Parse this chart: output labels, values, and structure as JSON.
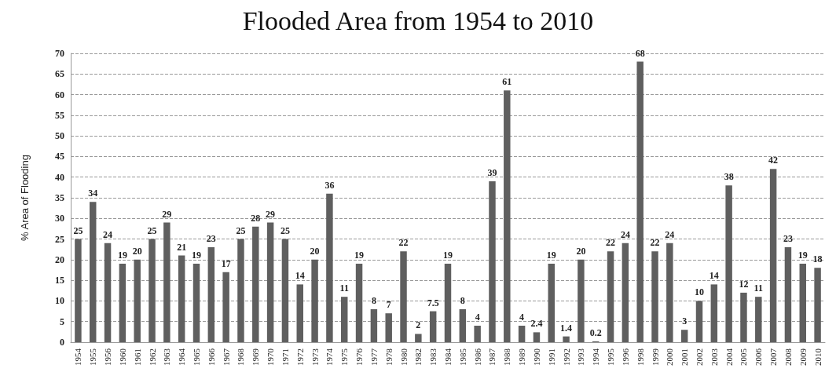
{
  "chart_data": {
    "type": "bar",
    "title": "Flooded Area from 1954 to 2010",
    "ylabel": "% Area of Flooding",
    "categories": [
      "1954",
      "1955",
      "1956",
      "1960",
      "1961",
      "1962",
      "1963",
      "1964",
      "1965",
      "1966",
      "1967",
      "1968",
      "1969",
      "1970",
      "1971",
      "1972",
      "1973",
      "1974",
      "1975",
      "1976",
      "1977",
      "1978",
      "1980",
      "1982",
      "1983",
      "1984",
      "1985",
      "1986",
      "1987",
      "1988",
      "1989",
      "1990",
      "1991",
      "1992",
      "1993",
      "1994",
      "1995",
      "1996",
      "1998",
      "1999",
      "2000",
      "2001",
      "2002",
      "2003",
      "2004",
      "2005",
      "2006",
      "2007",
      "2008",
      "2009",
      "2010"
    ],
    "values": [
      25,
      34,
      24,
      19,
      20,
      25,
      29,
      21,
      19,
      23,
      17,
      25,
      28,
      29,
      25,
      14,
      20,
      36,
      11,
      19,
      8,
      7,
      22,
      2,
      7.5,
      19,
      8,
      4,
      39,
      61,
      4,
      2.4,
      19,
      1.4,
      20,
      0.2,
      22,
      24,
      68,
      22,
      24,
      3,
      10,
      14,
      38,
      12,
      11,
      42,
      23,
      19,
      18
    ],
    "color": "#5f5f5f",
    "ylim": [
      0,
      70
    ],
    "yticks": [
      0,
      5,
      10,
      15,
      20,
      25,
      30,
      35,
      40,
      45,
      50,
      55,
      60,
      65,
      70
    ],
    "grid": "y",
    "data_labels": true
  }
}
